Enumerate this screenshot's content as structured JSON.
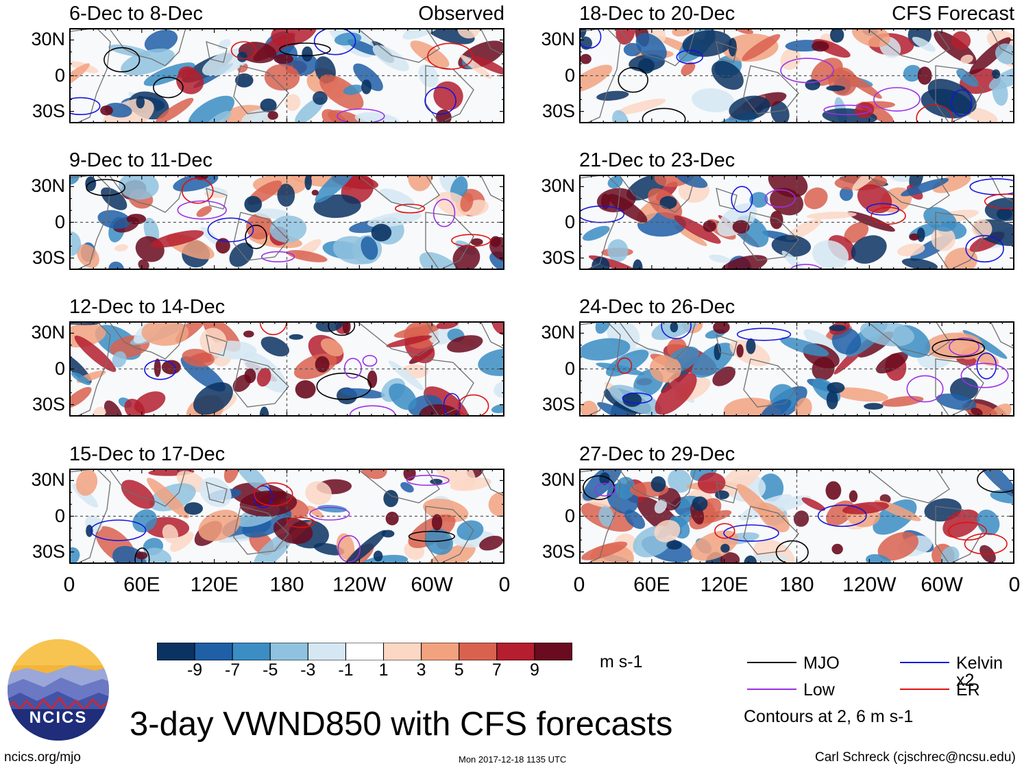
{
  "figure": {
    "main_title": "3-day VWND850 with CFS forecasts",
    "units": "m s-1",
    "site_url": "ncics.org/mjo",
    "timestamp": "Mon 2017-12-18 1135 UTC",
    "author": "Carl Schreck (cjschrec@ncsu.edu)",
    "logo_text": "NCICS",
    "contours_note": "Contours at 2, 6 m s-1"
  },
  "chart_data": {
    "type": "heatmap",
    "variable": "VWND850 (850-hPa meridional wind anomaly)",
    "x_tick_labels": [
      "0",
      "60E",
      "120E",
      "180",
      "120W",
      "60W",
      "0"
    ],
    "y_tick_labels": [
      "30N",
      "0",
      "30S"
    ],
    "columns": [
      {
        "tag": "Observed",
        "panels": [
          {
            "title": "6-Dec to 8-Dec"
          },
          {
            "title": "9-Dec to 11-Dec"
          },
          {
            "title": "12-Dec to 14-Dec"
          },
          {
            "title": "15-Dec to 17-Dec"
          }
        ]
      },
      {
        "tag": "CFS Forecast",
        "panels": [
          {
            "title": "18-Dec to 20-Dec"
          },
          {
            "title": "21-Dec to 23-Dec"
          },
          {
            "title": "24-Dec to 26-Dec"
          },
          {
            "title": "27-Dec to 29-Dec"
          }
        ]
      }
    ],
    "colorbar": {
      "tick_labels": [
        "-9",
        "-7",
        "-5",
        "-3",
        "-1",
        "1",
        "3",
        "5",
        "7",
        "9"
      ],
      "colors": [
        "#0a3362",
        "#1f5fa6",
        "#3b8dc3",
        "#8fc2de",
        "#d5e7f2",
        "#ffffff",
        "#fbd7c4",
        "#f2a27f",
        "#d9624f",
        "#b41e2e",
        "#6a0b1f"
      ]
    },
    "legend": [
      {
        "label": "MJO",
        "color": "#000000"
      },
      {
        "label": "Kelvin x2",
        "color": "#1515e0"
      },
      {
        "label": "Low",
        "color": "#9a30e6"
      },
      {
        "label": "ER",
        "color": "#e01010"
      }
    ]
  }
}
